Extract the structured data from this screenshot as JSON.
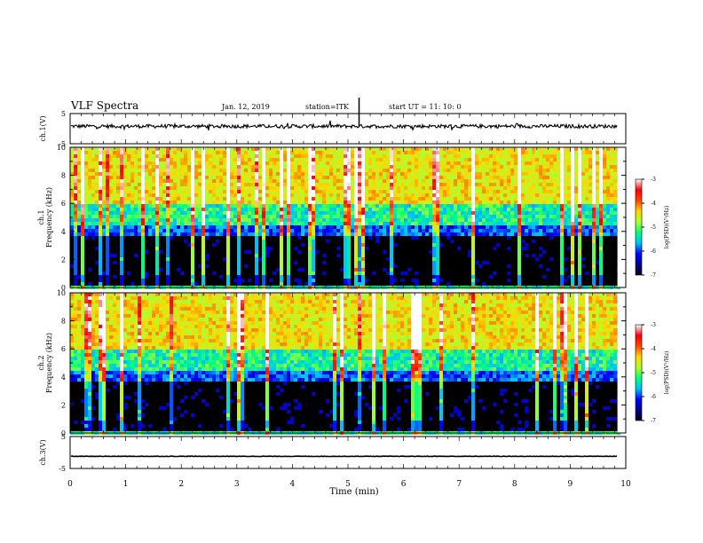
{
  "header": {
    "title": "VLF Spectra",
    "date": "Jan. 12, 2019",
    "station": "station=ITK",
    "start_ut": "start UT =  11: 10: 0"
  },
  "chart_data": [
    {
      "type": "line",
      "panel": "ch1-waveform",
      "ylabel": "ch.1(V)",
      "ylim": [
        -5,
        5
      ],
      "yticks": [
        "5",
        "-5"
      ],
      "xlim": [
        0,
        10
      ],
      "trace_color": "#000000",
      "baseline": 0.8
    },
    {
      "type": "heatmap",
      "panel": "ch1-spectrogram",
      "ylabel_top": "ch.1",
      "ylabel": "Frequency (kHz)",
      "ylim": [
        0,
        10
      ],
      "yticks": [
        "0",
        "2",
        "4",
        "6",
        "8",
        "10"
      ],
      "xlim": [
        0,
        10
      ],
      "colorbar": {
        "label": "log(PSD)(V²/Hz)",
        "range": [
          -7,
          -3
        ],
        "ticks": [
          "-3",
          "-4",
          "-5",
          "-6",
          "-7"
        ],
        "colors": [
          "#000000",
          "#00008b",
          "#0000ff",
          "#00bfff",
          "#00ff7f",
          "#adff2f",
          "#ffd700",
          "#ff4500",
          "#ff0000",
          "#ffffff"
        ]
      }
    },
    {
      "type": "heatmap",
      "panel": "ch2-spectrogram",
      "ylabel_top": "ch.2",
      "ylabel": "Frequency (kHz)",
      "ylim": [
        0,
        10
      ],
      "yticks": [
        "0",
        "2",
        "4",
        "6",
        "8",
        "10"
      ],
      "xlim": [
        0,
        10
      ],
      "colorbar": {
        "label": "log(PSD)(V²/Hz)",
        "range": [
          -7,
          -3
        ],
        "ticks": [
          "-3",
          "-4",
          "-5",
          "-6",
          "-7"
        ],
        "colors": [
          "#000000",
          "#00008b",
          "#0000ff",
          "#00bfff",
          "#00ff7f",
          "#adff2f",
          "#ffd700",
          "#ff4500",
          "#ff0000",
          "#ffffff"
        ]
      }
    },
    {
      "type": "line",
      "panel": "ch3-waveform",
      "ylabel": "ch.3(V)",
      "ylim": [
        -5,
        5
      ],
      "yticks": [
        "5",
        "-5"
      ],
      "xlim": [
        0,
        10
      ],
      "trace_color": "#000000",
      "baseline": -1.2
    }
  ],
  "xaxis": {
    "label": "Time (min)",
    "ticks": [
      "0",
      "1",
      "2",
      "3",
      "4",
      "5",
      "6",
      "7",
      "8",
      "9",
      "10"
    ],
    "data_end": 9.85
  }
}
